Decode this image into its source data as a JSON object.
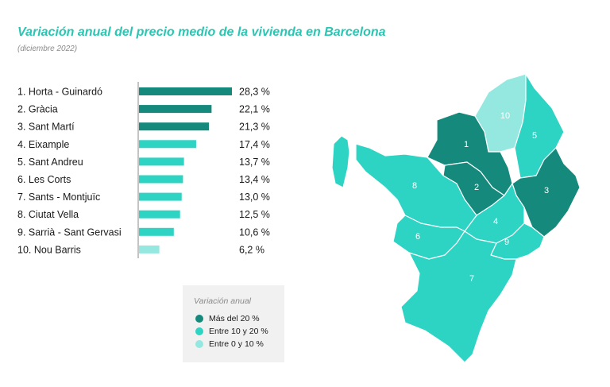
{
  "header": {
    "title": "Variación anual del precio medio de la vivienda en Barcelona",
    "subtitle": "(diciembre 2022)"
  },
  "colors": {
    "high": "#14897c",
    "mid": "#2dd3c3",
    "low": "#95e8e0",
    "title": "#2bc6b3",
    "axis": "#8a8a8a"
  },
  "chart_data": {
    "type": "bar",
    "orientation": "horizontal",
    "categories": [
      "1. Horta - Guinardó",
      "2. Gràcia",
      "3. Sant Martí",
      "4. Eixample",
      "5. Sant Andreu",
      "6. Les Corts",
      "7. Sants - Montjuïc",
      "8. Ciutat Vella",
      "9. Sarrià - Sant Gervasi",
      "10. Nou Barris"
    ],
    "values": [
      28.3,
      22.1,
      21.3,
      17.4,
      13.7,
      13.4,
      13.0,
      12.5,
      10.6,
      6.2
    ],
    "value_labels": [
      "28,3 %",
      "22,1 %",
      "21,3 %",
      "17,4 %",
      "13,7 %",
      "13,4 %",
      "13,0 %",
      "12,5 %",
      "10,6 %",
      "6,2 %"
    ],
    "title": "Variación anual del precio medio de la vivienda en Barcelona",
    "subtitle": "(diciembre 2022)",
    "xlabel": "",
    "ylabel": "",
    "grid": false
  },
  "map": {
    "district_numbers": [
      "1",
      "2",
      "3",
      "4",
      "5",
      "6",
      "7",
      "8",
      "9",
      "10"
    ]
  },
  "legend": {
    "title": "Variación anual",
    "items": [
      {
        "label": "Más del 20 %",
        "color": "#14897c"
      },
      {
        "label": "Entre 10 y 20 %",
        "color": "#2dd3c3"
      },
      {
        "label": "Entre 0 y 10 %",
        "color": "#95e8e0"
      }
    ]
  }
}
